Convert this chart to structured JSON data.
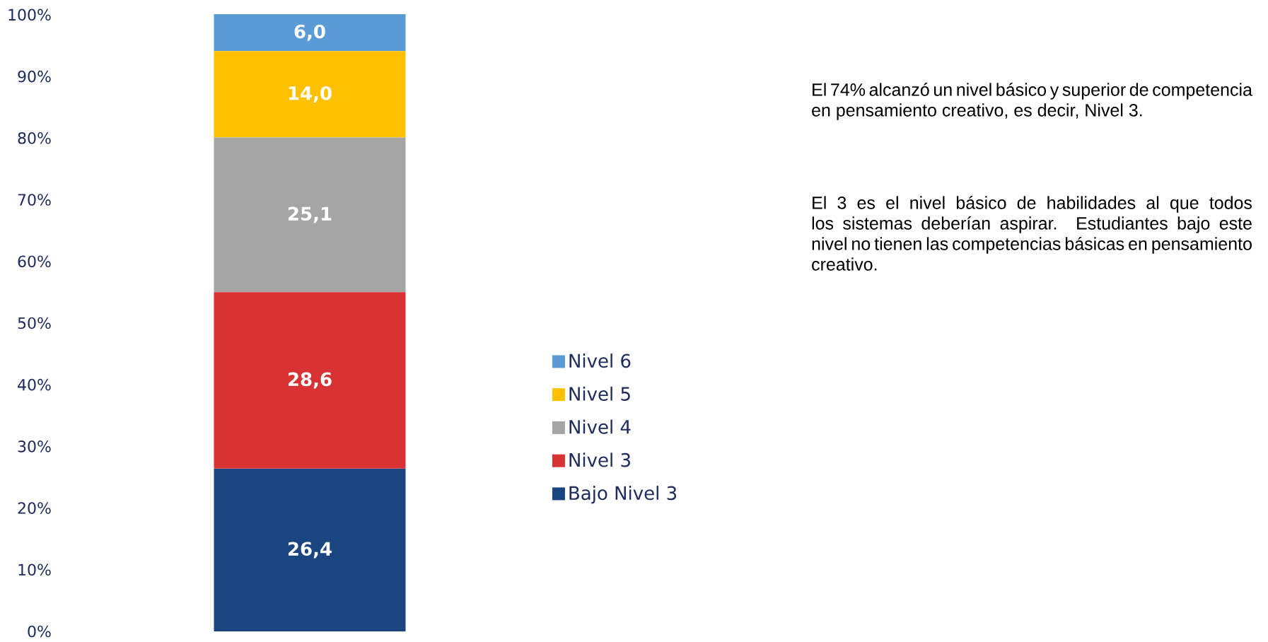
{
  "chart_data": {
    "type": "bar",
    "stacked": true,
    "categories": [
      null
    ],
    "tick_labels": "y",
    "legend": "right",
    "ylim": [
      0,
      100.1
    ],
    "yticks": [
      {
        "value": 0,
        "label": "0%"
      },
      {
        "value": 10,
        "label": "10%"
      },
      {
        "value": 20,
        "label": "20%"
      },
      {
        "value": 30,
        "label": "30%"
      },
      {
        "value": 40,
        "label": "40%"
      },
      {
        "value": 50,
        "label": "50%"
      },
      {
        "value": 60,
        "label": "60%"
      },
      {
        "value": 70,
        "label": "70%"
      },
      {
        "value": 80,
        "label": "80%"
      },
      {
        "value": 90,
        "label": "90%"
      },
      {
        "value": 100,
        "label": "100%"
      }
    ],
    "series": [
      {
        "name": "Bajo Nivel 3",
        "color": "#1b4580",
        "values": [
          26.4
        ],
        "value_labels": [
          "26,4"
        ]
      },
      {
        "name": "Nivel 3",
        "color": "#d93235",
        "values": [
          28.6
        ],
        "value_labels": [
          "28,6"
        ]
      },
      {
        "name": "Nivel 4",
        "color": "#a5a5a5",
        "values": [
          25.1
        ],
        "value_labels": [
          "25,1"
        ]
      },
      {
        "name": "Nivel 5",
        "color": "#ffc000",
        "values": [
          14.0
        ],
        "value_labels": [
          "14,0"
        ]
      },
      {
        "name": "Nivel 6",
        "color": "#5b9bd5",
        "values": [
          6.0
        ],
        "value_labels": [
          "6,0"
        ]
      }
    ],
    "annotations": [
      "El 74% alcanzó un nivel básico y superior de competencia en pensamiento creativo, es decir, Nivel 3.",
      "El 3 es el nivel básico de habilidades al que todos los sistemas deberían aspirar. Estudiantes bajo este nivel no tienen las competencias básicas en pensamiento creativo."
    ]
  }
}
